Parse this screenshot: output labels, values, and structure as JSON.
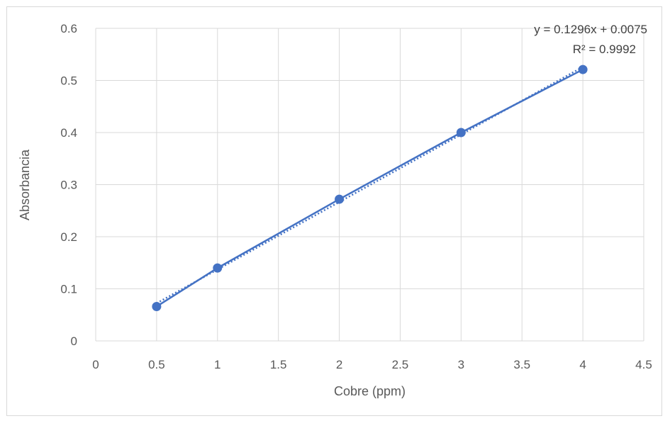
{
  "chart_data": {
    "type": "scatter",
    "title": "",
    "xlabel": "Cobre (ppm)",
    "ylabel": "Absorbancia",
    "xlim": [
      0,
      4.5
    ],
    "ylim": [
      0,
      0.6
    ],
    "x_ticks": [
      "0",
      "0.5",
      "1",
      "1.5",
      "2",
      "2.5",
      "3",
      "3.5",
      "4",
      "4.5"
    ],
    "y_ticks": [
      "0",
      "0.1",
      "0.2",
      "0.3",
      "0.4",
      "0.5",
      "0.6"
    ],
    "grid": true,
    "legend": "none",
    "series": [
      {
        "x": [
          0.5,
          1,
          2,
          3,
          4
        ],
        "y": [
          0.066,
          0.14,
          0.272,
          0.4,
          0.521
        ],
        "color": "#4472c4",
        "marker": "circle",
        "connected_with_line": true
      }
    ],
    "trendline": {
      "kind": "linear",
      "style": "dotted",
      "color": "#4472c4",
      "slope": 0.1296,
      "intercept": 0.0075,
      "x_range": [
        0.5,
        4
      ],
      "equation_label": "y = 0.1296x + 0.0075",
      "r2_label": "R² = 0.9992"
    }
  }
}
